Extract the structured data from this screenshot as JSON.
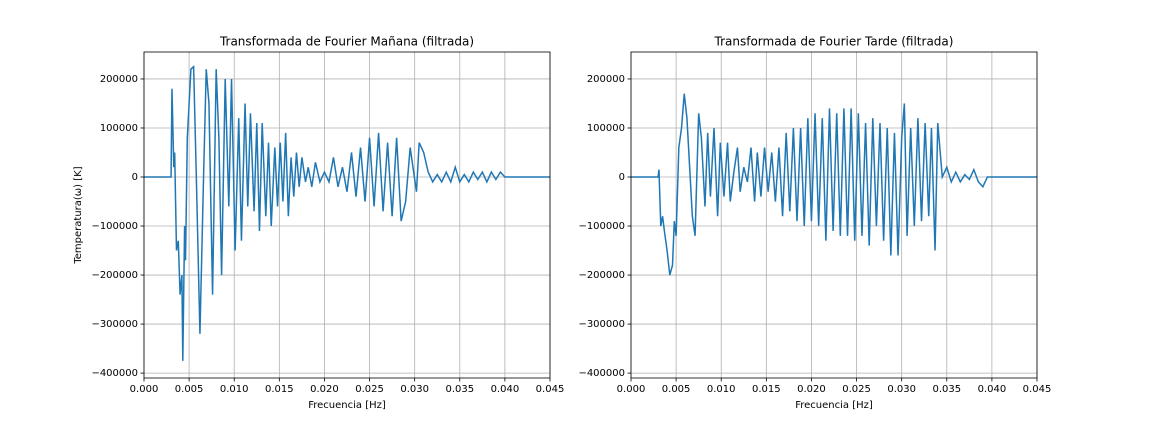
{
  "chart_data": [
    {
      "type": "line",
      "title": "Transformada de Fourier Mañana (filtrada)",
      "xlabel": "Frecuencia [Hz]",
      "ylabel": "Temperatura(ω) [K]",
      "color": "#1f77b4",
      "grid": true,
      "xlim": [
        0,
        0.045
      ],
      "ylim": [
        -410000,
        255000
      ],
      "xticks": [
        {
          "value": 0,
          "label": "0.000"
        },
        {
          "value": 0.005,
          "label": "0.005"
        },
        {
          "value": 0.01,
          "label": "0.010"
        },
        {
          "value": 0.015,
          "label": "0.015"
        },
        {
          "value": 0.02,
          "label": "0.020"
        },
        {
          "value": 0.025,
          "label": "0.025"
        },
        {
          "value": 0.03,
          "label": "0.030"
        },
        {
          "value": 0.035,
          "label": "0.035"
        },
        {
          "value": 0.04,
          "label": "0.040"
        },
        {
          "value": 0.045,
          "label": "0.045"
        }
      ],
      "yticks": [
        {
          "value": -400000,
          "label": "−400000"
        },
        {
          "value": -300000,
          "label": "−300000"
        },
        {
          "value": -200000,
          "label": "−200000"
        },
        {
          "value": -100000,
          "label": "−100000"
        },
        0,
        100000,
        200000
      ],
      "x": [
        0,
        0.003,
        0.0031,
        0.0033,
        0.0034,
        0.0036,
        0.0038,
        0.004,
        0.0042,
        0.0043,
        0.0045,
        0.0046,
        0.0048,
        0.0052,
        0.0055,
        0.0058,
        0.0062,
        0.0066,
        0.0069,
        0.0072,
        0.0076,
        0.008,
        0.0083,
        0.0086,
        0.009,
        0.0094,
        0.0097,
        0.0101,
        0.0105,
        0.0108,
        0.0112,
        0.0115,
        0.0118,
        0.0122,
        0.0125,
        0.0128,
        0.0131,
        0.0135,
        0.0138,
        0.0141,
        0.0145,
        0.0148,
        0.0151,
        0.0154,
        0.0157,
        0.016,
        0.0163,
        0.0166,
        0.0169,
        0.0172,
        0.0175,
        0.0179,
        0.0182,
        0.0186,
        0.019,
        0.0195,
        0.02,
        0.0205,
        0.021,
        0.0215,
        0.022,
        0.0225,
        0.023,
        0.0235,
        0.024,
        0.0245,
        0.025,
        0.0255,
        0.026,
        0.0265,
        0.027,
        0.0275,
        0.028,
        0.0285,
        0.029,
        0.0295,
        0.0302,
        0.0305,
        0.031,
        0.0315,
        0.032,
        0.0325,
        0.033,
        0.0335,
        0.034,
        0.0345,
        0.035,
        0.0355,
        0.036,
        0.0365,
        0.037,
        0.0375,
        0.038,
        0.0385,
        0.039,
        0.0395,
        0.04,
        0.045
      ],
      "values": [
        0,
        0,
        180000,
        20000,
        50000,
        -150000,
        -130000,
        -240000,
        -200000,
        -375000,
        -100000,
        -170000,
        80000,
        220000,
        225000,
        0,
        -320000,
        0,
        220000,
        150000,
        -240000,
        220000,
        80000,
        -200000,
        200000,
        -60000,
        200000,
        -150000,
        120000,
        -130000,
        150000,
        -60000,
        130000,
        -70000,
        110000,
        -110000,
        110000,
        -80000,
        70000,
        -100000,
        60000,
        -60000,
        70000,
        -50000,
        90000,
        -80000,
        40000,
        -40000,
        50000,
        -20000,
        40000,
        -10000,
        20000,
        -20000,
        30000,
        -10000,
        10000,
        -10000,
        40000,
        -20000,
        20000,
        -30000,
        50000,
        -40000,
        60000,
        -50000,
        80000,
        -60000,
        90000,
        -70000,
        70000,
        -80000,
        80000,
        -90000,
        -50000,
        60000,
        -30000,
        70000,
        50000,
        10000,
        -10000,
        5000,
        -10000,
        10000,
        -10000,
        20000,
        -10000,
        5000,
        -10000,
        10000,
        -5000,
        10000,
        -10000,
        10000,
        -5000,
        10000,
        0,
        0
      ]
    },
    {
      "type": "line",
      "title": "Transformada de Fourier Tarde (filtrada)",
      "xlabel": "Frecuencia [Hz]",
      "color": "#1f77b4",
      "grid": true,
      "xlim": [
        0,
        0.045
      ],
      "ylim": [
        -410000,
        255000
      ],
      "xticks": [
        {
          "value": 0,
          "label": "0.000"
        },
        {
          "value": 0.005,
          "label": "0.005"
        },
        {
          "value": 0.01,
          "label": "0.010"
        },
        {
          "value": 0.015,
          "label": "0.015"
        },
        {
          "value": 0.02,
          "label": "0.020"
        },
        {
          "value": 0.025,
          "label": "0.025"
        },
        {
          "value": 0.03,
          "label": "0.030"
        },
        {
          "value": 0.035,
          "label": "0.035"
        },
        {
          "value": 0.04,
          "label": "0.040"
        },
        {
          "value": 0.045,
          "label": "0.045"
        }
      ],
      "yticks": [
        {
          "value": -400000,
          "label": "−400000"
        },
        {
          "value": -300000,
          "label": "−300000"
        },
        {
          "value": -200000,
          "label": "−200000"
        },
        {
          "value": -100000,
          "label": "−100000"
        },
        0,
        100000,
        200000
      ],
      "x": [
        0,
        0.003,
        0.0031,
        0.0033,
        0.0035,
        0.0037,
        0.004,
        0.0043,
        0.0046,
        0.0048,
        0.005,
        0.0053,
        0.0056,
        0.0059,
        0.0062,
        0.0065,
        0.0068,
        0.0071,
        0.0075,
        0.0078,
        0.0082,
        0.0085,
        0.0088,
        0.0092,
        0.0096,
        0.0099,
        0.0103,
        0.0107,
        0.011,
        0.0114,
        0.0118,
        0.0121,
        0.0125,
        0.0129,
        0.0133,
        0.0137,
        0.014,
        0.0144,
        0.0148,
        0.0152,
        0.0156,
        0.016,
        0.0164,
        0.0168,
        0.0172,
        0.0176,
        0.018,
        0.0184,
        0.0188,
        0.0192,
        0.0196,
        0.02,
        0.0204,
        0.0208,
        0.0212,
        0.0216,
        0.022,
        0.0224,
        0.0228,
        0.0232,
        0.0236,
        0.024,
        0.0244,
        0.0248,
        0.0252,
        0.0256,
        0.026,
        0.0264,
        0.0268,
        0.0272,
        0.0276,
        0.028,
        0.0284,
        0.0288,
        0.0292,
        0.0296,
        0.03,
        0.0303,
        0.0306,
        0.031,
        0.0314,
        0.0318,
        0.0322,
        0.0326,
        0.033,
        0.0333,
        0.0337,
        0.034,
        0.0345,
        0.035,
        0.0355,
        0.036,
        0.0365,
        0.037,
        0.0375,
        0.038,
        0.0385,
        0.039,
        0.0395,
        0.04,
        0.045
      ],
      "values": [
        0,
        0,
        15000,
        -100000,
        -80000,
        -110000,
        -150000,
        -200000,
        -180000,
        -90000,
        -120000,
        60000,
        100000,
        170000,
        120000,
        20000,
        -80000,
        -120000,
        130000,
        80000,
        -60000,
        90000,
        -40000,
        100000,
        -80000,
        70000,
        -40000,
        70000,
        -50000,
        10000,
        60000,
        -30000,
        20000,
        -10000,
        60000,
        -50000,
        50000,
        -40000,
        60000,
        -30000,
        50000,
        -50000,
        60000,
        -80000,
        90000,
        -70000,
        100000,
        -90000,
        100000,
        -100000,
        120000,
        -90000,
        130000,
        -100000,
        120000,
        -130000,
        140000,
        -110000,
        130000,
        -120000,
        140000,
        -120000,
        140000,
        -130000,
        130000,
        -120000,
        110000,
        -140000,
        120000,
        -100000,
        110000,
        -130000,
        100000,
        -160000,
        90000,
        -160000,
        80000,
        150000,
        -120000,
        100000,
        -100000,
        120000,
        -90000,
        110000,
        -80000,
        100000,
        -150000,
        110000,
        0,
        20000,
        -10000,
        10000,
        -10000,
        5000,
        -5000,
        15000,
        -10000,
        -20000,
        0,
        0,
        0
      ]
    }
  ]
}
